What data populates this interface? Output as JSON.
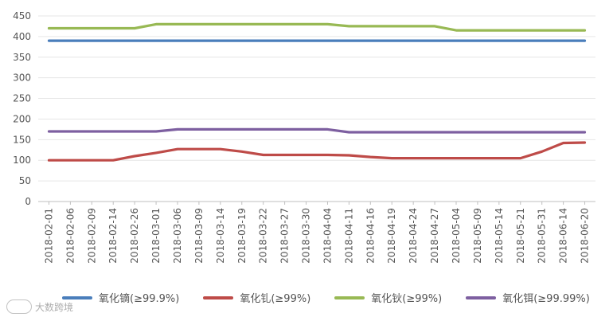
{
  "chart_data": {
    "type": "line",
    "title": "",
    "xlabel": "",
    "ylabel": "",
    "ylim": [
      0,
      450
    ],
    "y_ticks": [
      0,
      50,
      100,
      150,
      200,
      250,
      300,
      350,
      400,
      450
    ],
    "grid": true,
    "legend_position": "bottom",
    "categories": [
      "2018-02-01",
      "2018-02-06",
      "2018-02-09",
      "2018-02-14",
      "2018-02-26",
      "2018-03-01",
      "2018-03-06",
      "2018-03-09",
      "2018-03-14",
      "2018-03-19",
      "2018-03-22",
      "2018-03-27",
      "2018-03-30",
      "2018-04-04",
      "2018-04-11",
      "2018-04-16",
      "2018-04-19",
      "2018-04-24",
      "2018-04-27",
      "2018-05-04",
      "2018-05-09",
      "2018-05-14",
      "2018-05-21",
      "2018-05-31",
      "2018-06-14",
      "2018-06-20"
    ],
    "series": [
      {
        "name": "氧化镝(≥99.9%)",
        "color": "#4a7ebb",
        "values": [
          390,
          390,
          390,
          390,
          390,
          390,
          390,
          390,
          390,
          390,
          390,
          390,
          390,
          390,
          390,
          390,
          390,
          390,
          390,
          390,
          390,
          390,
          390,
          390,
          390,
          390
        ]
      },
      {
        "name": "氧化钆(≥99%)",
        "color": "#be4b48",
        "values": [
          100,
          100,
          100,
          100,
          110,
          118,
          127,
          127,
          127,
          121,
          113,
          113,
          113,
          113,
          112,
          108,
          105,
          105,
          105,
          105,
          105,
          105,
          105,
          121,
          142,
          143
        ]
      },
      {
        "name": "氧化钬(≥99%)",
        "color": "#98b954",
        "values": [
          420,
          420,
          420,
          420,
          420,
          430,
          430,
          430,
          430,
          430,
          430,
          430,
          430,
          430,
          425,
          425,
          425,
          425,
          425,
          415,
          415,
          415,
          415,
          415,
          415,
          415
        ]
      },
      {
        "name": "氧化铒(≥99.99%)",
        "color": "#7d5fa0",
        "values": [
          170,
          170,
          170,
          170,
          170,
          170,
          175,
          175,
          175,
          175,
          175,
          175,
          175,
          175,
          168,
          168,
          168,
          168,
          168,
          168,
          168,
          168,
          168,
          168,
          168,
          168
        ]
      }
    ]
  },
  "watermark": {
    "text": "大数跨境"
  }
}
